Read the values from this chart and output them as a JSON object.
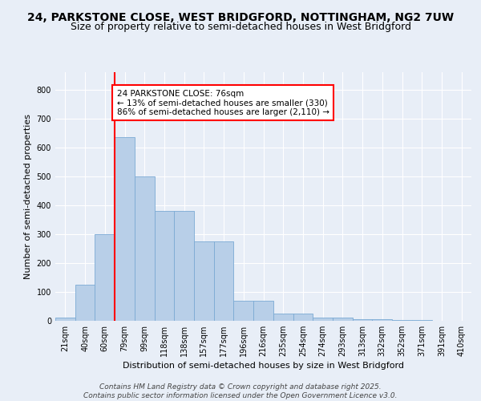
{
  "title_line1": "24, PARKSTONE CLOSE, WEST BRIDGFORD, NOTTINGHAM, NG2 7UW",
  "title_line2": "Size of property relative to semi-detached houses in West Bridgford",
  "xlabel": "Distribution of semi-detached houses by size in West Bridgford",
  "ylabel": "Number of semi-detached properties",
  "categories": [
    "21sqm",
    "40sqm",
    "60sqm",
    "79sqm",
    "99sqm",
    "118sqm",
    "138sqm",
    "157sqm",
    "177sqm",
    "196sqm",
    "216sqm",
    "235sqm",
    "254sqm",
    "274sqm",
    "293sqm",
    "313sqm",
    "332sqm",
    "352sqm",
    "371sqm",
    "391sqm",
    "410sqm"
  ],
  "values": [
    10,
    125,
    300,
    635,
    500,
    380,
    380,
    275,
    275,
    70,
    70,
    25,
    25,
    12,
    12,
    5,
    5,
    2,
    2,
    0,
    0
  ],
  "bar_color": "#b8cfe8",
  "bar_edge_color": "#7baad4",
  "vline_color": "red",
  "vline_index": 3,
  "annotation_text": "24 PARKSTONE CLOSE: 76sqm\n← 13% of semi-detached houses are smaller (330)\n86% of semi-detached houses are larger (2,110) →",
  "annotation_box_color": "white",
  "annotation_box_edge_color": "red",
  "ylim": [
    0,
    860
  ],
  "yticks": [
    0,
    100,
    200,
    300,
    400,
    500,
    600,
    700,
    800
  ],
  "background_color": "#e8eef7",
  "plot_bg_color": "#e8eef7",
  "footer_line1": "Contains HM Land Registry data © Crown copyright and database right 2025.",
  "footer_line2": "Contains public sector information licensed under the Open Government Licence v3.0.",
  "title_fontsize": 10,
  "subtitle_fontsize": 9,
  "axis_label_fontsize": 8,
  "tick_fontsize": 7,
  "annotation_fontsize": 7.5,
  "footer_fontsize": 6.5
}
